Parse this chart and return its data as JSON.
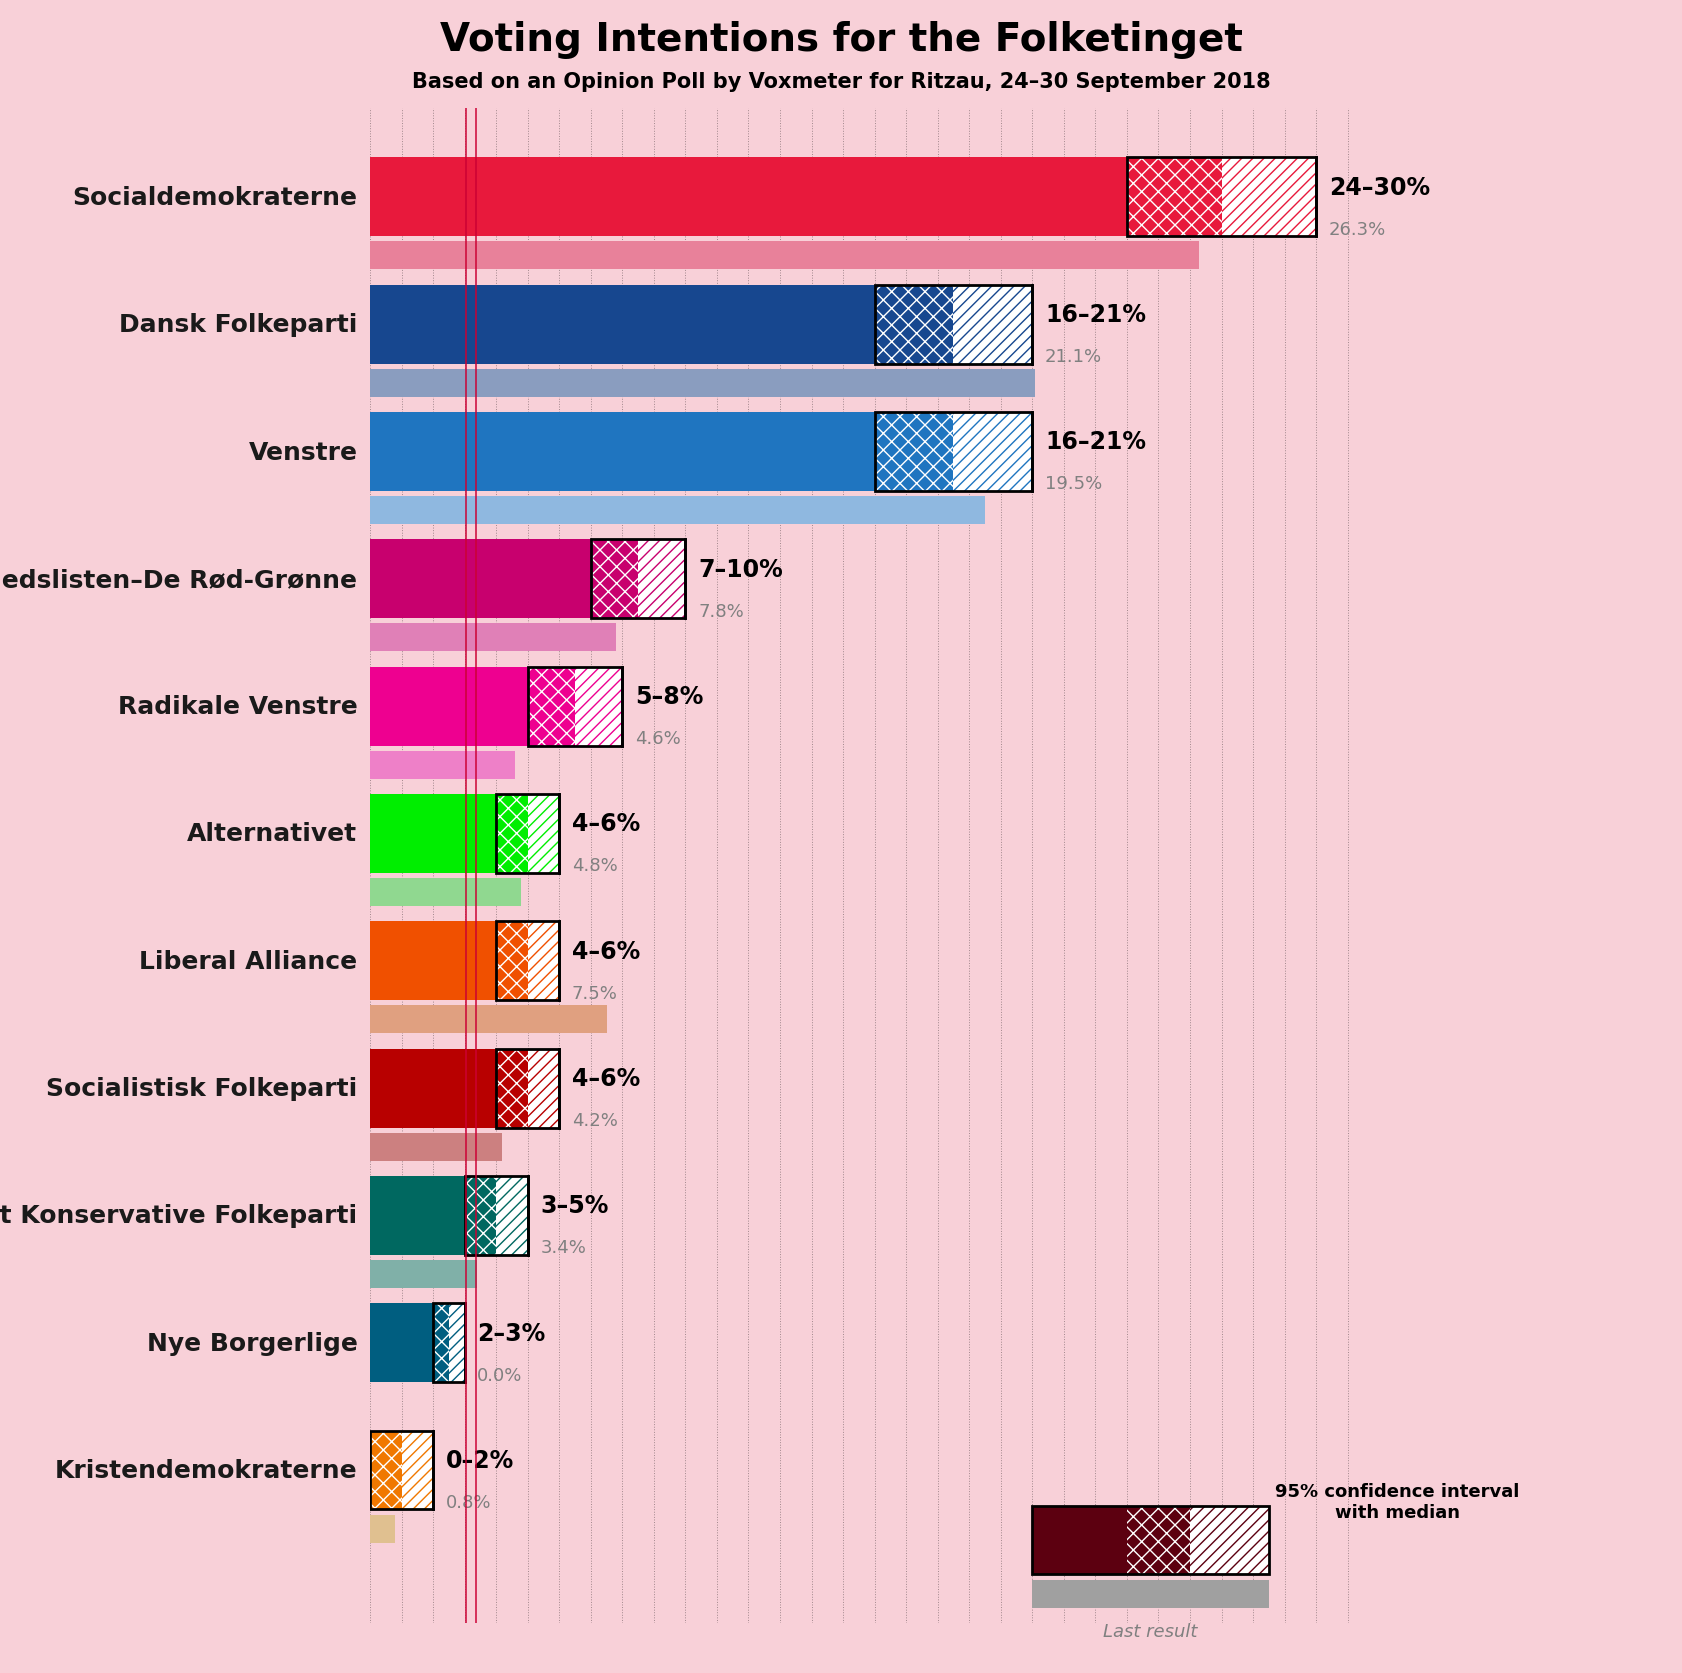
{
  "title": "Voting Intentions for the Folketinget",
  "subtitle": "Based on an Opinion Poll by Voxmeter for Ritzau, 24–30 September 2018",
  "background_color": "#f8d0d8",
  "parties": [
    {
      "name": "Socialdemokraterne",
      "color": "#e8193c",
      "color_light": "#e8819a",
      "ci_low": 24.0,
      "ci_high": 30.0,
      "median": 27.0,
      "last": 26.3,
      "label": "24–30%",
      "last_label": "26.3%"
    },
    {
      "name": "Dansk Folkeparti",
      "color": "#17478f",
      "color_light": "#8a9dbf",
      "ci_low": 16.0,
      "ci_high": 21.0,
      "median": 18.5,
      "last": 21.1,
      "label": "16–21%",
      "last_label": "21.1%"
    },
    {
      "name": "Venstre",
      "color": "#1f75c0",
      "color_light": "#8fb8e0",
      "ci_low": 16.0,
      "ci_high": 21.0,
      "median": 18.5,
      "last": 19.5,
      "label": "16–21%",
      "last_label": "19.5%"
    },
    {
      "name": "Enhedslisten–De Rød-Grønne",
      "color": "#c8006e",
      "color_light": "#e080b7",
      "ci_low": 7.0,
      "ci_high": 10.0,
      "median": 8.5,
      "last": 7.8,
      "label": "7–10%",
      "last_label": "7.8%"
    },
    {
      "name": "Radikale Venstre",
      "color": "#ee0090",
      "color_light": "#ee80c8",
      "ci_low": 5.0,
      "ci_high": 8.0,
      "median": 6.5,
      "last": 4.6,
      "label": "5–8%",
      "last_label": "4.6%"
    },
    {
      "name": "Alternativet",
      "color": "#00ee00",
      "color_light": "#90d890",
      "ci_low": 4.0,
      "ci_high": 6.0,
      "median": 5.0,
      "last": 4.8,
      "label": "4–6%",
      "last_label": "4.8%"
    },
    {
      "name": "Liberal Alliance",
      "color": "#f05000",
      "color_light": "#e0a080",
      "ci_low": 4.0,
      "ci_high": 6.0,
      "median": 5.0,
      "last": 7.5,
      "label": "4–6%",
      "last_label": "7.5%"
    },
    {
      "name": "Socialistisk Folkeparti",
      "color": "#b80000",
      "color_light": "#cc8080",
      "ci_low": 4.0,
      "ci_high": 6.0,
      "median": 5.0,
      "last": 4.2,
      "label": "4–6%",
      "last_label": "4.2%"
    },
    {
      "name": "Det Konservative Folkeparti",
      "color": "#006860",
      "color_light": "#80b0a8",
      "ci_low": 3.0,
      "ci_high": 5.0,
      "median": 4.0,
      "last": 3.4,
      "label": "3–5%",
      "last_label": "3.4%"
    },
    {
      "name": "Nye Borgerlige",
      "color": "#005e80",
      "color_light": "#80a8b8",
      "ci_low": 2.0,
      "ci_high": 3.0,
      "median": 2.5,
      "last": 0.0,
      "label": "2–3%",
      "last_label": "0.0%"
    },
    {
      "name": "Kristendemokraterne",
      "color": "#f07800",
      "color_light": "#e0c090",
      "ci_low": 0.0,
      "ci_high": 2.0,
      "median": 1.0,
      "last": 0.8,
      "label": "0–2%",
      "last_label": "0.8%"
    }
  ],
  "xlim": [
    0,
    32
  ],
  "bar_height": 0.62,
  "last_bar_height": 0.22,
  "bar_gap": 1.0,
  "label_fontsize": 17,
  "title_fontsize": 28,
  "subtitle_fontsize": 15,
  "party_fontsize": 18,
  "legend_text": "95% confidence interval\nwith median",
  "legend_last": "Last result",
  "red_lines": [
    3.05,
    3.35
  ],
  "grid_color": "#000000",
  "grid_alpha": 0.35
}
